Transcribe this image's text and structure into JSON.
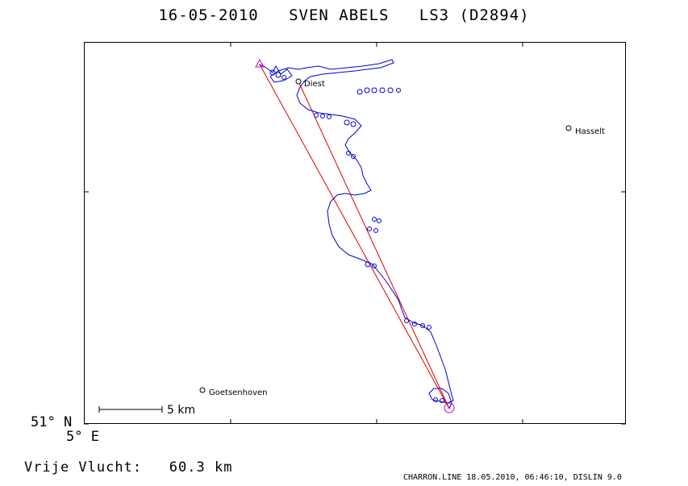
{
  "header": {
    "date": "16-05-2010",
    "pilot": "SVEN ABELS",
    "glider": "LS3 (D2894)"
  },
  "map": {
    "places": [
      {
        "name": "Diest"
      },
      {
        "name": "Hasselt"
      },
      {
        "name": "Goetsenhoven"
      }
    ],
    "scale_label": "5 km",
    "lat_label": "51° N",
    "lon_label": "5° E",
    "colors": {
      "track": "#0000cc",
      "task_line": "#dd0000",
      "turnpoint": "#cc00cc",
      "frame": "#000000"
    }
  },
  "summary": {
    "distance_label": "Vrije Vlucht:",
    "distance_value": "60.3 km"
  },
  "footer": {
    "credit": "CHARRON.LINE 18.05.2010, 06:46:10, DISLIN 9.0"
  }
}
